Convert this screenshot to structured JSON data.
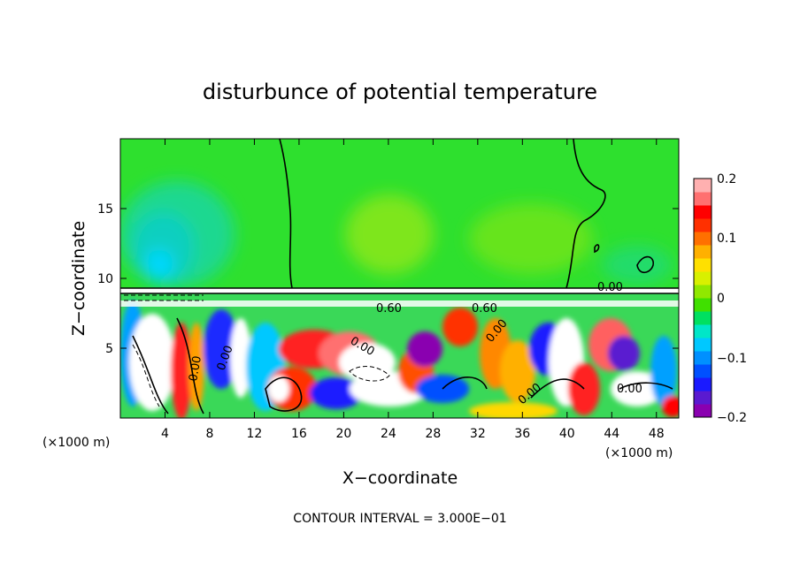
{
  "chart_data": {
    "type": "heatmap",
    "title": "disturbunce of potential temperature",
    "xlabel": "X−coordinate",
    "ylabel": "Z−coordinate",
    "x_unit": "(×1000 m)",
    "z_unit": "(×1000 m)",
    "xlim": [
      0,
      50
    ],
    "ylim": [
      0,
      20
    ],
    "x_ticks": [
      "4",
      "8",
      "12",
      "16",
      "20",
      "24",
      "28",
      "32",
      "36",
      "40",
      "44",
      "48"
    ],
    "y_ticks": [
      "5",
      "10",
      "15"
    ],
    "colorbar": {
      "range": [
        -0.2,
        0.2
      ],
      "tick_labels": [
        "0.2",
        "0.1",
        "0",
        "−0.1",
        "−0.2"
      ],
      "colors": [
        "#8a00b0",
        "#5a1ad0",
        "#1a1aff",
        "#0050ff",
        "#0090ff",
        "#00c8ff",
        "#00e6c8",
        "#00e060",
        "#40e000",
        "#90e800",
        "#d8f000",
        "#ffe000",
        "#ffb000",
        "#ff7000",
        "#ff3000",
        "#ff0000",
        "#ff7070",
        "#ffb0b0"
      ]
    },
    "contour_interval": "CONTOUR INTERVAL = 3.000E−01",
    "contour_labels": [
      "0.00",
      "0.60",
      "0.60",
      "0.00",
      "0.00",
      "0.00",
      "0.00",
      "0.00",
      "0.00"
    ],
    "grid": false
  }
}
